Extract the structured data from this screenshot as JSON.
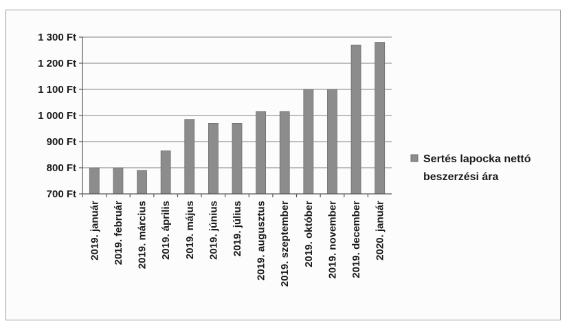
{
  "chart_data": {
    "type": "bar",
    "categories": [
      "2019. január",
      "2019. február",
      "2019. március",
      "2019. április",
      "2019. május",
      "2019. június",
      "2019. július",
      "2019. augusztus",
      "2019. szeptember",
      "2019. október",
      "2019. november",
      "2019. december",
      "2020. január"
    ],
    "series": [
      {
        "name": "Sertés lapocka nettó beszerzési ára",
        "values": [
          800,
          800,
          790,
          865,
          985,
          970,
          970,
          1015,
          1015,
          1100,
          1100,
          1270,
          1280
        ]
      }
    ],
    "ylim": [
      700,
      1300
    ],
    "yticks": [
      700,
      800,
      900,
      1000,
      1100,
      1200,
      1300
    ],
    "ytick_labels": [
      "700 Ft",
      "800 Ft",
      "900 Ft",
      "1 000 Ft",
      "1 100 Ft",
      "1 200 Ft",
      "1 300 Ft"
    ],
    "grid": true,
    "legend_position": "right",
    "legend_lines": [
      "Sertés lapocka nettó",
      "beszerzési ára"
    ],
    "bar_color": "#8c8c8c"
  }
}
